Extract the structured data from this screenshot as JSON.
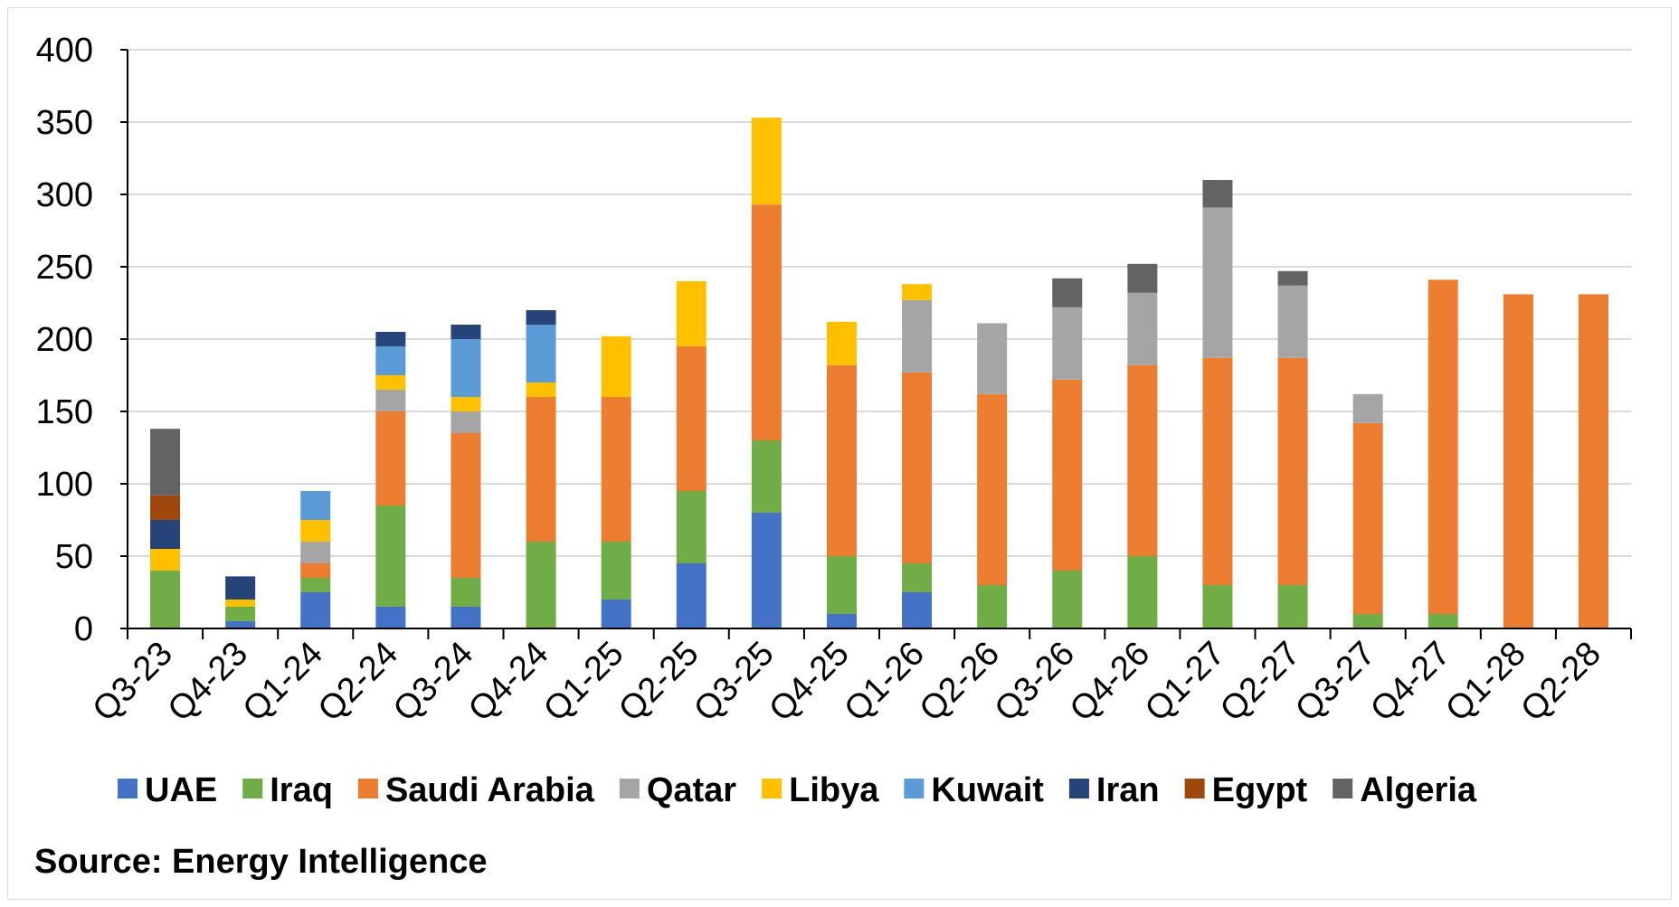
{
  "chart_data": {
    "type": "bar",
    "stacked": true,
    "title": "",
    "xlabel": "",
    "ylabel": "",
    "ylim": [
      0,
      400
    ],
    "yticks": [
      0,
      50,
      100,
      150,
      200,
      250,
      300,
      350,
      400
    ],
    "grid": "horizontal",
    "legend_position": "bottom",
    "categories": [
      "Q3-23",
      "Q4-23",
      "Q1-24",
      "Q2-24",
      "Q3-24",
      "Q4-24",
      "Q1-25",
      "Q2-25",
      "Q3-25",
      "Q4-25",
      "Q1-26",
      "Q2-26",
      "Q3-26",
      "Q4-26",
      "Q1-27",
      "Q2-27",
      "Q3-27",
      "Q4-27",
      "Q1-28",
      "Q2-28"
    ],
    "series": [
      {
        "name": "UAE",
        "color": "#4472C4",
        "values": [
          0,
          5,
          25,
          15,
          15,
          0,
          20,
          45,
          80,
          10,
          25,
          0,
          0,
          0,
          0,
          0,
          0,
          0,
          0,
          0
        ]
      },
      {
        "name": "Iraq",
        "color": "#70AD47",
        "values": [
          40,
          10,
          10,
          70,
          20,
          60,
          40,
          50,
          50,
          40,
          20,
          30,
          40,
          50,
          30,
          30,
          10,
          10,
          0,
          0
        ]
      },
      {
        "name": "Saudi Arabia",
        "color": "#ED7D31",
        "values": [
          0,
          0,
          10,
          65,
          100,
          100,
          100,
          100,
          163,
          132,
          132,
          132,
          132,
          132,
          157,
          157,
          132,
          231,
          231,
          231
        ]
      },
      {
        "name": "Qatar",
        "color": "#A5A5A5",
        "values": [
          0,
          0,
          15,
          15,
          15,
          0,
          0,
          0,
          0,
          0,
          50,
          49,
          50,
          50,
          104,
          50,
          20,
          0,
          0,
          0
        ]
      },
      {
        "name": "Libya",
        "color": "#FFC000",
        "values": [
          15,
          5,
          15,
          10,
          10,
          10,
          42,
          45,
          60,
          30,
          11,
          0,
          0,
          0,
          0,
          0,
          0,
          0,
          0,
          0
        ]
      },
      {
        "name": "Kuwait",
        "color": "#5B9BD5",
        "values": [
          0,
          0,
          20,
          20,
          40,
          40,
          0,
          0,
          0,
          0,
          0,
          0,
          0,
          0,
          0,
          0,
          0,
          0,
          0,
          0
        ]
      },
      {
        "name": "Iran",
        "color": "#264478",
        "values": [
          20,
          16,
          0,
          10,
          10,
          10,
          0,
          0,
          0,
          0,
          0,
          0,
          0,
          0,
          0,
          0,
          0,
          0,
          0,
          0
        ]
      },
      {
        "name": "Egypt",
        "color": "#9E480E",
        "values": [
          17,
          0,
          0,
          0,
          0,
          0,
          0,
          0,
          0,
          0,
          0,
          0,
          0,
          0,
          0,
          0,
          0,
          0,
          0,
          0
        ]
      },
      {
        "name": "Algeria",
        "color": "#636363",
        "values": [
          46,
          0,
          0,
          0,
          0,
          0,
          0,
          0,
          0,
          0,
          0,
          0,
          20,
          20,
          19,
          10,
          0,
          0,
          0,
          0
        ]
      }
    ]
  },
  "source_note": "Source: Energy Intelligence"
}
